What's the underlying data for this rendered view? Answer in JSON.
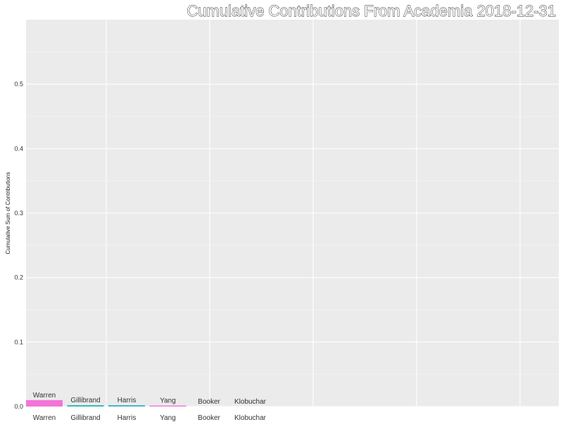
{
  "chart_data": {
    "type": "bar",
    "title": "Cumulative Contributions From  Academia  2018-12-31",
    "xlabel": "",
    "ylabel": "Cumulative Sum of Contributions",
    "ylim": [
      0,
      0.6
    ],
    "yticks": [
      "0.0",
      "0.1",
      "0.2",
      "0.3",
      "0.4",
      "0.5"
    ],
    "grid": true,
    "categories": [
      "Warren",
      "Gillibrand",
      "Harris",
      "Yang",
      "Booker",
      "Klobuchar"
    ],
    "values": [
      0.01,
      0.002,
      0.002,
      0.0015,
      0,
      0
    ],
    "colors": [
      "#f274d8",
      "#2bb3b5",
      "#35b3c9",
      "#f274d8",
      "#9a9a9a",
      "#9a9a9a"
    ]
  }
}
